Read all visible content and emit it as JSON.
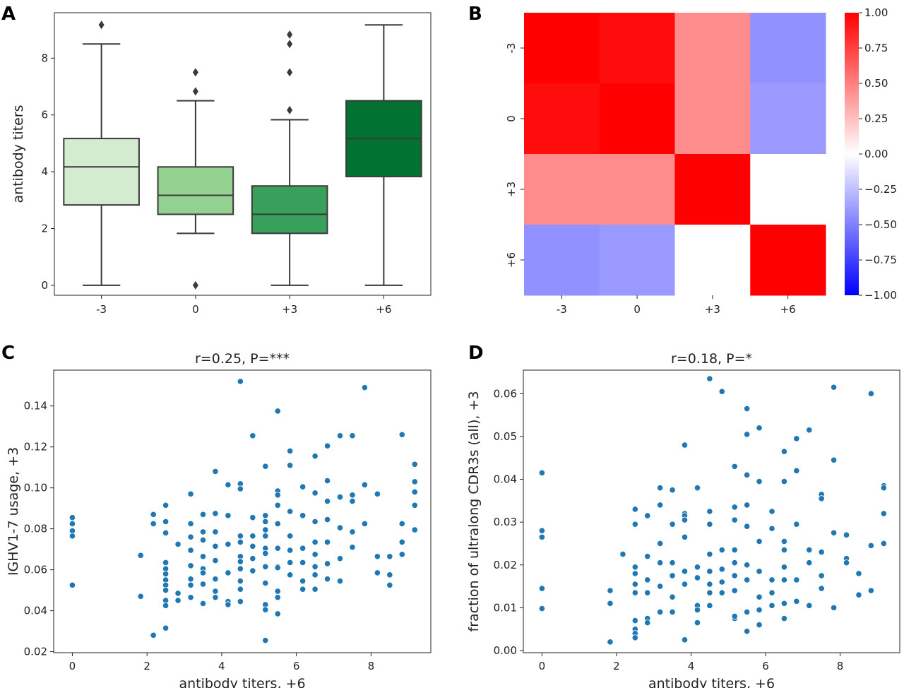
{
  "panels": {
    "A": "A",
    "B": "B",
    "C": "C",
    "D": "D"
  },
  "chart_data": [
    {
      "panel": "A",
      "type": "box",
      "categories": [
        "-3",
        "0",
        "+3",
        "+6"
      ],
      "ylabel": "antibody titers",
      "xlabel": "",
      "ylim": [
        -0.35,
        9.6
      ],
      "yticks": [
        0,
        2,
        4,
        6,
        8
      ],
      "grid": false,
      "colors": [
        "#d3ecd0",
        "#93d190",
        "#38a05a",
        "#017232"
      ],
      "boxes": [
        {
          "q1": 2.83,
          "median": 4.17,
          "q3": 5.17,
          "whislo": 0,
          "whishi": 8.5,
          "fliers": [
            9.17
          ]
        },
        {
          "q1": 2.5,
          "median": 3.17,
          "q3": 4.17,
          "whislo": 1.83,
          "whishi": 6.5,
          "fliers": [
            7.5,
            6.83,
            0
          ]
        },
        {
          "q1": 1.83,
          "median": 2.5,
          "q3": 3.5,
          "whislo": 0,
          "whishi": 5.83,
          "fliers": [
            8.83,
            8.5,
            7.5,
            6.17
          ]
        },
        {
          "q1": 3.83,
          "median": 5.17,
          "q3": 6.5,
          "whislo": 0,
          "whishi": 9.17,
          "fliers": []
        }
      ]
    },
    {
      "panel": "B",
      "type": "heatmap",
      "rows": [
        "-3",
        "0",
        "+3",
        "+6"
      ],
      "cols": [
        "-3",
        "0",
        "+3",
        "+6"
      ],
      "values": [
        [
          1.0,
          0.95,
          0.45,
          -0.43
        ],
        [
          0.95,
          1.0,
          0.45,
          -0.4
        ],
        [
          0.45,
          0.45,
          1.0,
          0.0
        ],
        [
          -0.43,
          -0.4,
          0.0,
          1.0
        ]
      ],
      "vmin": -1.0,
      "vmax": 1.0,
      "colormap": "bwr",
      "colorbar_ticks": [
        "1.00",
        "0.75",
        "0.50",
        "0.25",
        "0.00",
        "−0.25",
        "−0.50",
        "−0.75",
        "−1.00"
      ]
    },
    {
      "panel": "C",
      "type": "scatter",
      "title": "r=0.25, P=***",
      "xlabel": "antibody titers, +6",
      "ylabel": "IGHV1-7 usage, +3",
      "xlim": [
        -0.5,
        9.6
      ],
      "ylim": [
        0.0195,
        0.1575
      ],
      "xticks": [
        0,
        2,
        4,
        6,
        8
      ],
      "yticks": [
        0.02,
        0.04,
        0.06,
        0.08,
        0.1,
        0.12,
        0.14
      ],
      "color": "#1f77b4",
      "x": [
        0,
        0,
        0,
        0,
        0,
        1.83,
        1.83,
        2.17,
        2.17,
        2.5,
        2.5,
        2.5,
        2.5,
        2.5,
        2.5,
        2.5,
        2.5,
        2.5,
        2.5,
        2.5,
        2.5,
        2.83,
        2.83,
        2.83,
        3.17,
        3.17,
        3.17,
        3.17,
        3.17,
        3.17,
        3.17,
        3.17,
        3.5,
        3.5,
        3.5,
        3.5,
        3.5,
        3.5,
        3.5,
        3.5,
        3.83,
        3.83,
        3.83,
        3.83,
        3.83,
        3.83,
        3.83,
        4.17,
        4.17,
        4.17,
        4.17,
        4.17,
        4.17,
        4.5,
        4.5,
        4.5,
        4.5,
        4.5,
        4.5,
        4.5,
        4.5,
        4.5,
        4.83,
        4.83,
        4.83,
        4.83,
        4.83,
        4.83,
        5.17,
        5.17,
        5.17,
        5.17,
        5.17,
        5.17,
        5.17,
        5.17,
        5.17,
        5.17,
        5.17,
        5.5,
        5.5,
        5.5,
        5.5,
        5.5,
        5.5,
        5.5,
        5.5,
        5.5,
        5.5,
        5.83,
        5.83,
        5.83,
        5.83,
        5.83,
        5.83,
        5.83,
        6.17,
        6.17,
        6.17,
        6.17,
        6.17,
        6.17,
        6.5,
        6.5,
        6.5,
        6.5,
        6.5,
        6.5,
        6.5,
        6.5,
        6.83,
        6.83,
        6.83,
        6.83,
        6.83,
        6.83,
        7.17,
        7.17,
        7.17,
        7.17,
        7.17,
        7.5,
        7.5,
        7.5,
        7.5,
        7.83,
        7.83,
        7.83,
        8.17,
        8.17,
        8.17,
        8.5,
        8.5,
        8.5,
        8.83,
        8.83,
        8.83,
        8.83,
        9.17,
        9.17,
        9.17,
        9.17,
        9.17,
        2.17,
        4.5,
        6.83,
        7.5,
        3.83,
        5.5,
        5.17,
        4.5
      ],
      "y": [
        0.0855,
        0.0825,
        0.079,
        0.0765,
        0.0525,
        0.067,
        0.047,
        0.087,
        0.028,
        0.0915,
        0.078,
        0.0635,
        0.0605,
        0.058,
        0.055,
        0.0525,
        0.05,
        0.045,
        0.0425,
        0.0315,
        0.0835,
        0.0725,
        0.0485,
        0.045,
        0.097,
        0.0825,
        0.076,
        0.0695,
        0.062,
        0.0555,
        0.0525,
        0.0465,
        0.087,
        0.0785,
        0.0745,
        0.0665,
        0.0605,
        0.0585,
        0.053,
        0.0435,
        0.108,
        0.0875,
        0.0785,
        0.0715,
        0.0645,
        0.0555,
        0.0465,
        0.1015,
        0.0865,
        0.0725,
        0.0585,
        0.0445,
        0.043,
        0.152,
        0.102,
        0.0995,
        0.0765,
        0.0735,
        0.0665,
        0.0605,
        0.0545,
        0.0445,
        0.1255,
        0.0855,
        0.0765,
        0.0715,
        0.0655,
        0.0595,
        0.1105,
        0.0865,
        0.0835,
        0.0795,
        0.0765,
        0.0705,
        0.0615,
        0.0535,
        0.043,
        0.0405,
        0.0255,
        0.1375,
        0.0985,
        0.0965,
        0.0915,
        0.0825,
        0.0705,
        0.0615,
        0.0495,
        0.0465,
        0.0385,
        0.118,
        0.111,
        0.0885,
        0.0765,
        0.0695,
        0.0635,
        0.0575,
        0.1005,
        0.0865,
        0.0705,
        0.0635,
        0.0545,
        0.0505,
        0.1155,
        0.0975,
        0.0835,
        0.0735,
        0.0675,
        0.0615,
        0.0575,
        0.0505,
        0.1205,
        0.1035,
        0.0935,
        0.0845,
        0.0735,
        0.0555,
        0.1255,
        0.0955,
        0.0805,
        0.0655,
        0.0545,
        0.1255,
        0.0965,
        0.0935,
        0.0785,
        0.149,
        0.1015,
        0.0825,
        0.097,
        0.0665,
        0.0585,
        0.0665,
        0.0575,
        0.0525,
        0.126,
        0.0825,
        0.0735,
        0.0675,
        0.1115,
        0.103,
        0.0915,
        0.0795,
        0.098,
        0.0825,
        0.0505,
        0.063,
        0.071,
        0.0495,
        0.061,
        0.068,
        0.064
      ]
    },
    {
      "panel": "D",
      "type": "scatter",
      "title": "r=0.18, P=*",
      "xlabel": "antibody titers, +6",
      "ylabel": "fraction of ultralong CDR3s (all), +3",
      "xlim": [
        -0.5,
        9.6
      ],
      "ylim": [
        -0.0005,
        0.0655
      ],
      "xticks": [
        0,
        2,
        4,
        6,
        8
      ],
      "yticks": [
        0.0,
        0.01,
        0.02,
        0.03,
        0.04,
        0.05,
        0.06
      ],
      "color": "#1f77b4",
      "x": [
        0,
        0,
        0,
        0,
        0,
        1.83,
        1.83,
        1.83,
        2.17,
        2.5,
        2.5,
        2.5,
        2.5,
        2.5,
        2.5,
        2.5,
        2.5,
        2.5,
        2.5,
        2.83,
        2.83,
        2.83,
        2.83,
        2.83,
        2.83,
        3.17,
        3.17,
        3.17,
        3.17,
        3.17,
        3.17,
        3.5,
        3.5,
        3.5,
        3.5,
        3.5,
        3.5,
        3.83,
        3.83,
        3.83,
        3.83,
        3.83,
        3.83,
        3.83,
        4.17,
        4.17,
        4.17,
        4.17,
        4.17,
        4.17,
        4.5,
        4.5,
        4.5,
        4.5,
        4.5,
        4.5,
        4.5,
        4.83,
        4.83,
        4.83,
        4.83,
        4.83,
        5.17,
        5.17,
        5.17,
        5.17,
        5.17,
        5.17,
        5.17,
        5.17,
        5.5,
        5.5,
        5.5,
        5.5,
        5.5,
        5.5,
        5.5,
        5.5,
        5.83,
        5.83,
        5.83,
        5.83,
        5.83,
        5.83,
        6.17,
        6.17,
        6.17,
        6.17,
        6.17,
        6.5,
        6.5,
        6.5,
        6.5,
        6.5,
        6.5,
        6.5,
        6.83,
        6.83,
        6.83,
        6.83,
        6.83,
        7.17,
        7.17,
        7.17,
        7.17,
        7.5,
        7.5,
        7.5,
        7.5,
        7.5,
        7.83,
        7.83,
        7.83,
        7.83,
        8.17,
        8.17,
        8.17,
        8.5,
        8.5,
        8.83,
        8.83,
        8.83,
        9.17,
        9.17,
        9.17,
        9.17,
        4.5,
        5.5,
        5.83,
        6.5,
        3.83,
        5.17
      ],
      "y": [
        0.0415,
        0.028,
        0.0265,
        0.0145,
        0.0098,
        0.014,
        0.011,
        0.002,
        0.0225,
        0.033,
        0.0295,
        0.0195,
        0.018,
        0.0155,
        0.0135,
        0.007,
        0.005,
        0.004,
        0.003,
        0.0315,
        0.022,
        0.0165,
        0.0135,
        0.0075,
        0.0065,
        0.038,
        0.034,
        0.025,
        0.0205,
        0.015,
        0.009,
        0.0375,
        0.0295,
        0.0205,
        0.0175,
        0.0125,
        0.009,
        0.048,
        0.032,
        0.0315,
        0.0305,
        0.0185,
        0.0155,
        0.0025,
        0.038,
        0.0195,
        0.017,
        0.0105,
        0.0095,
        0.0065,
        0.0635,
        0.0325,
        0.0295,
        0.0225,
        0.0185,
        0.0155,
        0.0135,
        0.0605,
        0.0235,
        0.019,
        0.016,
        0.0135,
        0.043,
        0.0335,
        0.0305,
        0.0235,
        0.0205,
        0.0175,
        0.014,
        0.0075,
        0.0565,
        0.0505,
        0.041,
        0.034,
        0.029,
        0.02,
        0.0165,
        0.0045,
        0.052,
        0.0395,
        0.0255,
        0.0185,
        0.0125,
        0.006,
        0.0325,
        0.0285,
        0.0165,
        0.0135,
        0.0105,
        0.0465,
        0.0395,
        0.0255,
        0.0235,
        0.0195,
        0.0165,
        0.0075,
        0.0495,
        0.042,
        0.0295,
        0.0165,
        0.0115,
        0.0515,
        0.0235,
        0.0205,
        0.0105,
        0.0365,
        0.0355,
        0.023,
        0.0175,
        0.0145,
        0.0615,
        0.0445,
        0.0275,
        0.01,
        0.027,
        0.0215,
        0.0205,
        0.018,
        0.013,
        0.06,
        0.0245,
        0.014,
        0.0385,
        0.038,
        0.032,
        0.025,
        0.0105,
        0.009,
        0.0095,
        0.011,
        0.0265,
        0.008
      ]
    }
  ]
}
